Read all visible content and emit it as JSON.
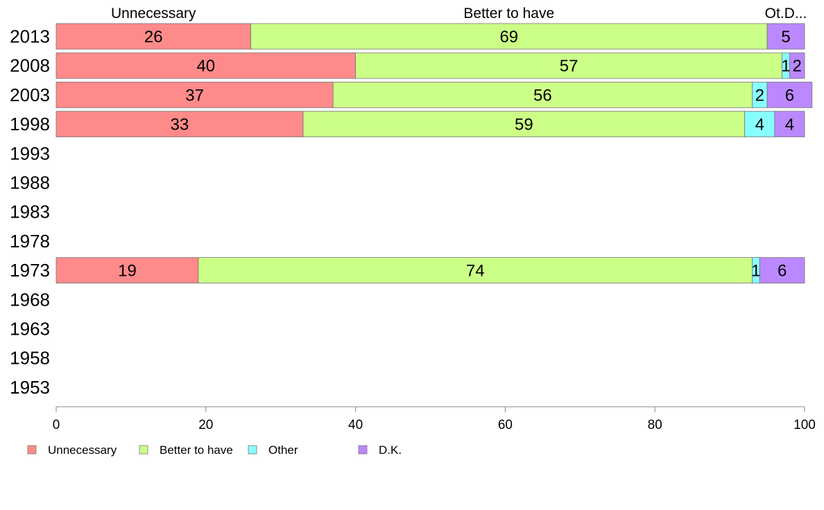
{
  "chart_data": {
    "type": "bar",
    "orientation": "horizontal",
    "stacked": true,
    "categories": [
      "2013",
      "2008",
      "2003",
      "1998",
      "1993",
      "1988",
      "1983",
      "1978",
      "1973",
      "1968",
      "1963",
      "1958",
      "1953"
    ],
    "series": [
      {
        "name": "Unnecessary",
        "color": "#ff8a8a",
        "values": [
          26,
          40,
          37,
          33,
          null,
          null,
          null,
          null,
          19,
          null,
          null,
          null,
          null
        ]
      },
      {
        "name": "Better to have",
        "color": "#ccff88",
        "values": [
          69,
          57,
          56,
          59,
          null,
          null,
          null,
          null,
          74,
          null,
          null,
          null,
          null
        ]
      },
      {
        "name": "Other",
        "color": "#88ffff",
        "values": [
          0,
          1,
          2,
          4,
          null,
          null,
          null,
          null,
          1,
          null,
          null,
          null,
          null
        ]
      },
      {
        "name": "D.K.",
        "color": "#bb88ff",
        "values": [
          5,
          2,
          6,
          4,
          null,
          null,
          null,
          null,
          6,
          null,
          null,
          null,
          null
        ]
      }
    ],
    "top_labels": [
      "Unnecessary",
      "Better to have",
      "Ot.D..."
    ],
    "xlim": [
      0,
      100
    ],
    "xticks": [
      "0",
      "20",
      "40",
      "60",
      "80",
      "100"
    ],
    "legend_position": "bottom-left",
    "grid": false
  }
}
